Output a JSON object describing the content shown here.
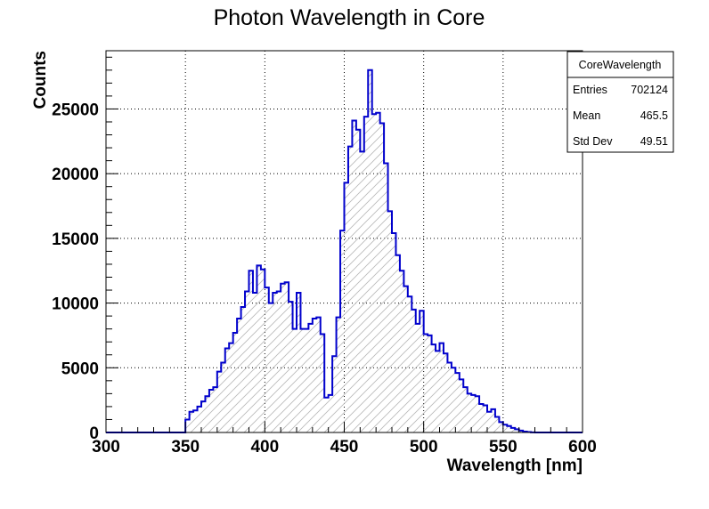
{
  "chart_data": {
    "type": "histogram",
    "title": "Photon Wavelength in Core",
    "xlabel": "Wavelength [nm]",
    "ylabel": "Counts",
    "xlim": [
      300,
      600
    ],
    "ylim": [
      0,
      29500
    ],
    "bin_width": 2.5,
    "x_ticks": [
      300,
      350,
      400,
      450,
      500,
      550,
      600
    ],
    "x_tick_labels": [
      "300",
      "350",
      "400",
      "450",
      "500",
      "550",
      "600"
    ],
    "y_ticks": [
      0,
      5000,
      10000,
      15000,
      20000,
      25000
    ],
    "y_tick_labels": [
      "0",
      "5000",
      "10000",
      "15000",
      "20000",
      "25000"
    ],
    "grid": true,
    "fill": "diagonal hatch",
    "line_color": "#0000cc",
    "counts": [
      0,
      0,
      0,
      0,
      0,
      0,
      0,
      0,
      0,
      0,
      0,
      0,
      0,
      0,
      0,
      0,
      0,
      0,
      0,
      0,
      1000,
      1600,
      1700,
      2000,
      2400,
      2800,
      3300,
      3500,
      4700,
      5400,
      6500,
      6900,
      7700,
      8800,
      9700,
      10900,
      12500,
      10800,
      12900,
      12600,
      11200,
      10000,
      10800,
      10900,
      11500,
      11600,
      10100,
      8000,
      10800,
      8000,
      8000,
      8400,
      8800,
      8900,
      7600,
      2700,
      2900,
      5900,
      8900,
      15600,
      19300,
      22100,
      24100,
      23400,
      21700,
      24400,
      28000,
      24600,
      24700,
      23900,
      20800,
      17100,
      15400,
      13700,
      12500,
      11300,
      10500,
      9500,
      8400,
      9400,
      7600,
      7500,
      6800,
      6300,
      6900,
      6100,
      5400,
      5000,
      4600,
      4100,
      3500,
      3000,
      2900,
      2800,
      2200,
      2100,
      1600,
      1800,
      1200,
      800,
      600,
      500,
      350,
      250,
      150,
      70,
      30,
      10,
      0,
      0,
      0,
      0,
      0,
      0,
      0,
      0,
      0,
      0,
      0,
      0
    ]
  },
  "stats_box": {
    "name": "CoreWavelength",
    "rows": [
      {
        "label": "Entries",
        "value": "702124"
      },
      {
        "label": "Mean",
        "value": "465.5"
      },
      {
        "label": "Std Dev",
        "value": "49.51"
      }
    ]
  }
}
